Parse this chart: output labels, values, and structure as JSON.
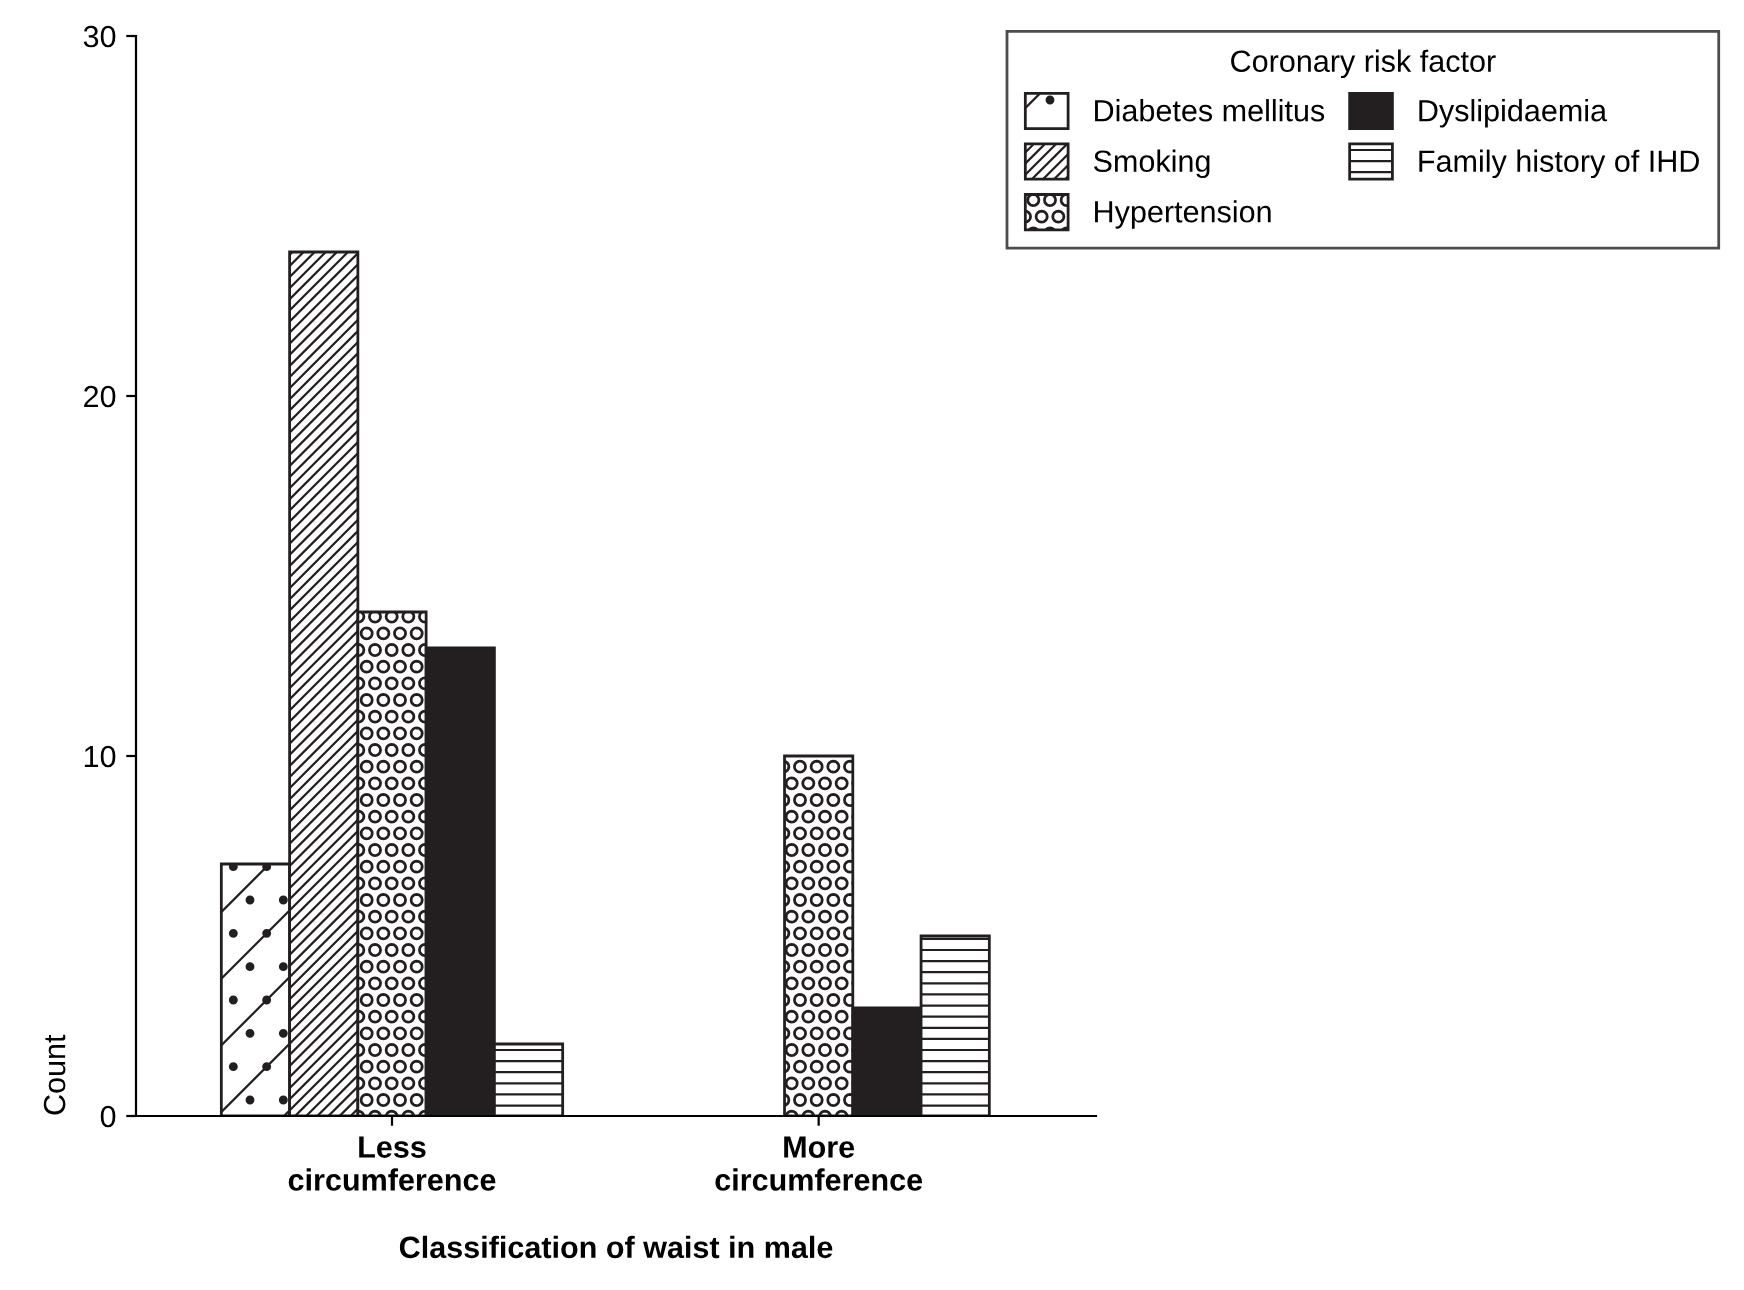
{
  "chart_data": {
    "type": "bar",
    "xlabel": "Classification of waist in male",
    "ylabel": "Count",
    "legend_title": "Coronary risk factor",
    "categories": [
      "Less\ncircumference",
      "More\ncircumference"
    ],
    "series": [
      {
        "name": "Diabetes mellitus",
        "color": "#231f20",
        "values": [
          7,
          null
        ]
      },
      {
        "name": "Smoking",
        "color": "#231f20",
        "values": [
          24,
          null
        ]
      },
      {
        "name": "Hypertension",
        "color": "#231f20",
        "values": [
          14,
          10
        ]
      },
      {
        "name": "Dyslipidaemia",
        "color": "#231f20",
        "values": [
          13,
          3
        ]
      },
      {
        "name": "Family history of IHD",
        "color": "#231f20",
        "values": [
          2,
          5
        ]
      }
    ],
    "ylim": [
      0,
      30
    ],
    "yticks": [
      0,
      10,
      20,
      30
    ],
    "grid": false,
    "legend": "top right"
  }
}
